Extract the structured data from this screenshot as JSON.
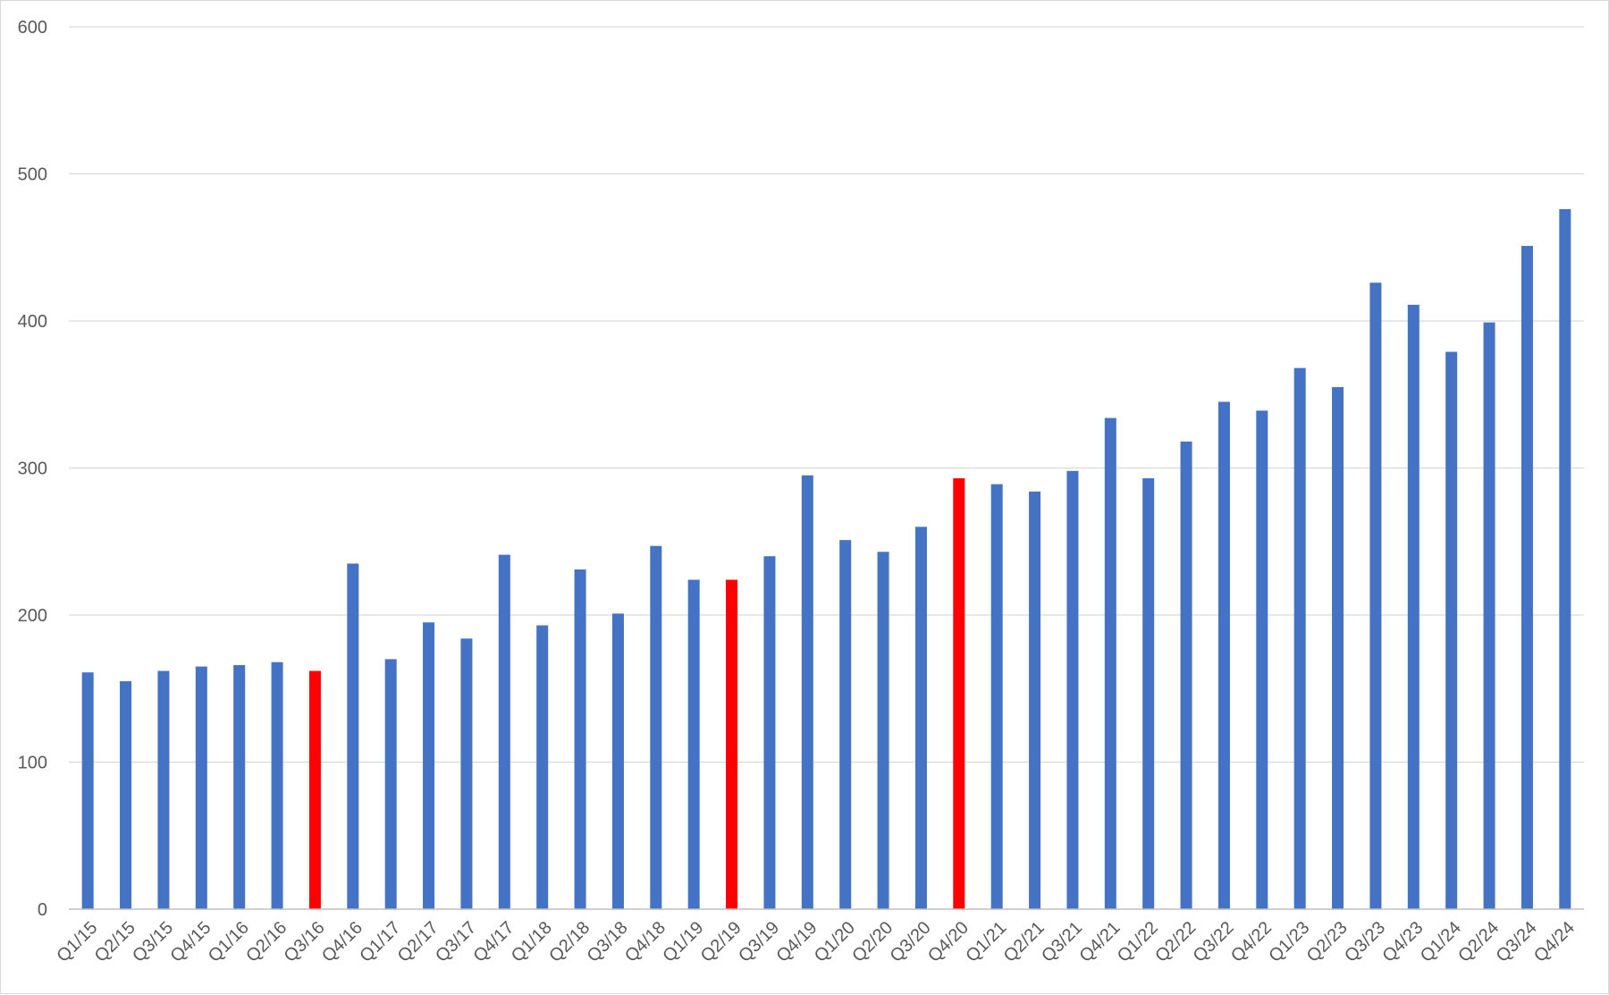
{
  "chart_data": {
    "type": "bar",
    "categories": [
      "Q1/15",
      "Q2/15",
      "Q3/15",
      "Q4/15",
      "Q1/16",
      "Q2/16",
      "Q3/16",
      "Q4/16",
      "Q1/17",
      "Q2/17",
      "Q3/17",
      "Q4/17",
      "Q1/18",
      "Q2/18",
      "Q3/18",
      "Q4/18",
      "Q1/19",
      "Q2/19",
      "Q3/19",
      "Q4/19",
      "Q1/20",
      "Q2/20",
      "Q3/20",
      "Q4/20",
      "Q1/21",
      "Q2/21",
      "Q3/21",
      "Q4/21",
      "Q1/22",
      "Q2/22",
      "Q3/22",
      "Q4/22",
      "Q1/23",
      "Q2/23",
      "Q3/23",
      "Q4/23",
      "Q1/24",
      "Q2/24",
      "Q3/24",
      "Q4/24"
    ],
    "values": [
      161,
      155,
      162,
      165,
      166,
      168,
      162,
      235,
      170,
      195,
      184,
      241,
      193,
      231,
      201,
      247,
      224,
      224,
      240,
      295,
      251,
      243,
      260,
      293,
      289,
      284,
      298,
      334,
      293,
      318,
      345,
      339,
      368,
      355,
      426,
      411,
      379,
      399,
      451,
      476
    ],
    "highlighted": [
      "Q3/16",
      "Q2/19",
      "Q4/20"
    ],
    "colors": {
      "bar": "#4472c4",
      "highlight": "#ff0000"
    },
    "title": "",
    "xlabel": "",
    "ylabel": "",
    "ylim": [
      0,
      600
    ],
    "yticks": [
      0,
      100,
      200,
      300,
      400,
      500,
      600
    ],
    "grid": true,
    "legend": "none"
  }
}
